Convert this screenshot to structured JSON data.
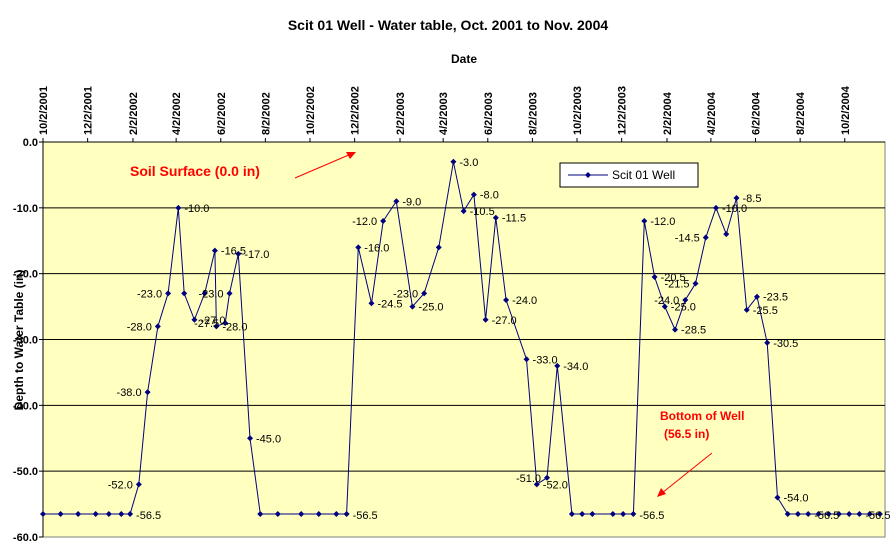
{
  "chart_data": {
    "type": "line",
    "title": "Scit 01 Well - Water table, Oct. 2001 to Nov. 2004",
    "xlabel": "Date",
    "ylabel": "Depth to Water Table (in)",
    "x_tick_labels": [
      "10/2/2001",
      "12/2/2001",
      "2/2/2002",
      "4/2/2002",
      "6/2/2002",
      "8/2/2002",
      "10/2/2002",
      "12/2/2002",
      "2/2/2003",
      "4/2/2003",
      "6/2/2003",
      "8/2/2003",
      "10/2/2003",
      "12/2/2003",
      "2/2/2004",
      "4/2/2004",
      "6/2/2004",
      "8/2/2004",
      "10/2/2004"
    ],
    "xlim": [
      "2001-10-02",
      "2004-11-26"
    ],
    "x_axis_position": "top",
    "ylim": [
      -60,
      0
    ],
    "y_ticks": [
      0,
      -10,
      -20,
      -30,
      -40,
      -50,
      -60
    ],
    "y_tick_labels": [
      "0.0",
      "-10.0",
      "-20.0",
      "-30.0",
      "-40.0",
      "-50.0",
      "-60.0"
    ],
    "grid": true,
    "legend_position": "top-right",
    "series": [
      {
        "name": "Scit 01 Well",
        "color": "#000080",
        "points": [
          {
            "x": "2001-10-02",
            "y": -56.5,
            "label": ""
          },
          {
            "x": "2001-10-26",
            "y": -56.5,
            "label": ""
          },
          {
            "x": "2001-11-19",
            "y": -56.5,
            "label": ""
          },
          {
            "x": "2001-12-13",
            "y": -56.5,
            "label": ""
          },
          {
            "x": "2001-12-31",
            "y": -56.5,
            "label": ""
          },
          {
            "x": "2002-01-17",
            "y": -56.5,
            "label": ""
          },
          {
            "x": "2002-01-29",
            "y": -56.5,
            "label": "-56.5"
          },
          {
            "x": "2002-02-10",
            "y": -52.0,
            "label": "-52.0"
          },
          {
            "x": "2002-02-22",
            "y": -38.0,
            "label": "-38.0"
          },
          {
            "x": "2002-03-08",
            "y": -28.0,
            "label": "-28.0"
          },
          {
            "x": "2002-03-22",
            "y": -23.0,
            "label": "-23.0"
          },
          {
            "x": "2002-04-05",
            "y": -10.0,
            "label": "-10.0"
          },
          {
            "x": "2002-04-13",
            "y": -23.0,
            "label": ""
          },
          {
            "x": "2002-04-27",
            "y": -27.0,
            "label": "-27.0"
          },
          {
            "x": "2002-05-11",
            "y": -23.0,
            "label": ""
          },
          {
            "x": "2002-05-25",
            "y": -16.5,
            "label": "-16.5"
          },
          {
            "x": "2002-05-27",
            "y": -28.0,
            "label": "-28.0"
          },
          {
            "x": "2002-06-08",
            "y": -27.5,
            "label": "-27.5"
          },
          {
            "x": "2002-06-14",
            "y": -23.0,
            "label": "-23.0"
          },
          {
            "x": "2002-06-26",
            "y": -17.0,
            "label": "-17.0"
          },
          {
            "x": "2002-07-12",
            "y": -45.0,
            "label": "-45.0"
          },
          {
            "x": "2002-07-26",
            "y": -56.5,
            "label": ""
          },
          {
            "x": "2002-08-19",
            "y": -56.5,
            "label": ""
          },
          {
            "x": "2002-09-20",
            "y": -56.5,
            "label": ""
          },
          {
            "x": "2002-10-14",
            "y": -56.5,
            "label": ""
          },
          {
            "x": "2002-11-07",
            "y": -56.5,
            "label": ""
          },
          {
            "x": "2002-11-21",
            "y": -56.5,
            "label": "-56.5"
          },
          {
            "x": "2002-12-07",
            "y": -16.0,
            "label": "-16.0"
          },
          {
            "x": "2002-12-25",
            "y": -24.5,
            "label": "-24.5"
          },
          {
            "x": "2003-01-10",
            "y": -12.0,
            "label": "-12.0"
          },
          {
            "x": "2003-01-28",
            "y": -9.0,
            "label": "-9.0"
          },
          {
            "x": "2003-02-19",
            "y": -25.0,
            "label": "-25.0"
          },
          {
            "x": "2003-03-07",
            "y": -23.0,
            "label": "-23.0"
          },
          {
            "x": "2003-03-27",
            "y": -16.0,
            "label": ""
          },
          {
            "x": "2003-04-16",
            "y": -3.0,
            "label": "-3.0"
          },
          {
            "x": "2003-04-30",
            "y": -10.5,
            "label": "-10.5"
          },
          {
            "x": "2003-05-14",
            "y": -8.0,
            "label": "-8.0"
          },
          {
            "x": "2003-05-30",
            "y": -27.0,
            "label": "-27.0"
          },
          {
            "x": "2003-06-13",
            "y": -11.5,
            "label": "-11.5"
          },
          {
            "x": "2003-06-27",
            "y": -24.0,
            "label": "-24.0"
          },
          {
            "x": "2003-07-25",
            "y": -33.0,
            "label": "-33.0"
          },
          {
            "x": "2003-08-08",
            "y": -52.0,
            "label": "-52.0"
          },
          {
            "x": "2003-08-22",
            "y": -51.0,
            "label": "-51.0"
          },
          {
            "x": "2003-09-05",
            "y": -34.0,
            "label": "-34.0"
          },
          {
            "x": "2003-09-25",
            "y": -56.5,
            "label": ""
          },
          {
            "x": "2003-10-09",
            "y": -56.5,
            "label": ""
          },
          {
            "x": "2003-10-23",
            "y": -56.5,
            "label": ""
          },
          {
            "x": "2003-11-20",
            "y": -56.5,
            "label": ""
          },
          {
            "x": "2003-12-04",
            "y": -56.5,
            "label": ""
          },
          {
            "x": "2003-12-18",
            "y": -56.5,
            "label": "-56.5"
          },
          {
            "x": "2004-01-02",
            "y": -12.0,
            "label": "-12.0"
          },
          {
            "x": "2004-01-16",
            "y": -20.5,
            "label": "-20.5"
          },
          {
            "x": "2004-01-30",
            "y": -25.0,
            "label": "-25.0"
          },
          {
            "x": "2004-02-13",
            "y": -28.5,
            "label": "-28.5"
          },
          {
            "x": "2004-02-27",
            "y": -24.0,
            "label": "-24.0"
          },
          {
            "x": "2004-03-12",
            "y": -21.5,
            "label": "-21.5"
          },
          {
            "x": "2004-03-26",
            "y": -14.5,
            "label": "-14.5"
          },
          {
            "x": "2004-04-09",
            "y": -10.0,
            "label": "-10.0"
          },
          {
            "x": "2004-04-23",
            "y": -14.0,
            "label": ""
          },
          {
            "x": "2004-05-07",
            "y": -8.5,
            "label": "-8.5"
          },
          {
            "x": "2004-05-21",
            "y": -25.5,
            "label": "-25.5"
          },
          {
            "x": "2004-06-04",
            "y": -23.5,
            "label": "-23.5"
          },
          {
            "x": "2004-06-18",
            "y": -30.5,
            "label": "-30.5"
          },
          {
            "x": "2004-07-02",
            "y": -54.0,
            "label": "-54.0"
          },
          {
            "x": "2004-07-16",
            "y": -56.5,
            "label": ""
          },
          {
            "x": "2004-07-30",
            "y": -56.5,
            "label": ""
          },
          {
            "x": "2004-08-13",
            "y": -56.5,
            "label": "-56.5"
          },
          {
            "x": "2004-08-27",
            "y": -56.5,
            "label": ""
          },
          {
            "x": "2004-09-10",
            "y": -56.5,
            "label": ""
          },
          {
            "x": "2004-09-24",
            "y": -56.5,
            "label": ""
          },
          {
            "x": "2004-10-08",
            "y": -56.5,
            "label": ""
          },
          {
            "x": "2004-10-22",
            "y": -56.5,
            "label": "-56.5"
          },
          {
            "x": "2004-11-05",
            "y": -56.5,
            "label": ""
          },
          {
            "x": "2004-11-19",
            "y": -56.5,
            "label": ""
          }
        ]
      }
    ],
    "annotations": [
      {
        "text": "Soil Surface (0.0 in)"
      },
      {
        "text": "Bottom of Well"
      },
      {
        "text": "(56.5 in)"
      }
    ]
  }
}
